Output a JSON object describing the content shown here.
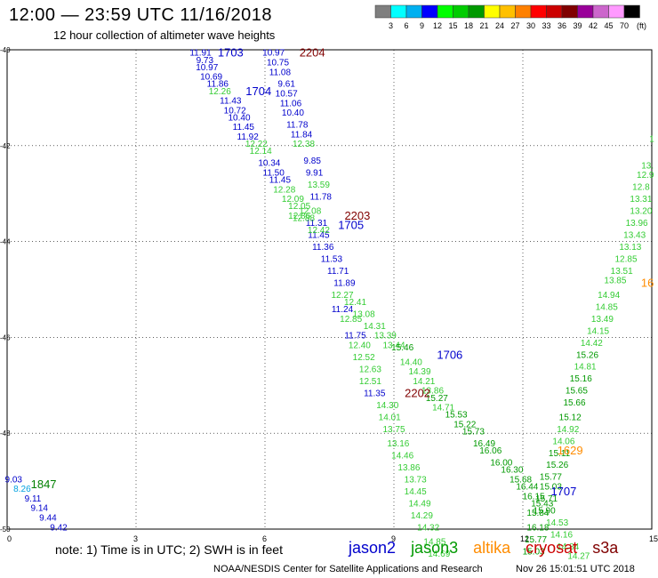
{
  "header": {
    "title": "12:00 — 23:59 UTC 11/16/2018",
    "subtitle": "12 hour collection of altimeter wave heights"
  },
  "colorbar": {
    "colors": [
      "#7f7f7f",
      "#00ffff",
      "#00b0f0",
      "#0000ff",
      "#00ff00",
      "#00cc00",
      "#009900",
      "#ffff00",
      "#ffc000",
      "#ff8000",
      "#ff0000",
      "#cc0000",
      "#800000",
      "#990099",
      "#cc66cc",
      "#ff99ff",
      "#000000"
    ],
    "labels": [
      "3",
      "6",
      "9",
      "12",
      "15",
      "18",
      "21",
      "24",
      "27",
      "30",
      "33",
      "36",
      "39",
      "42",
      "45",
      "70",
      "(ft)"
    ]
  },
  "chart_data": {
    "type": "scatter",
    "xlim": [
      0,
      15
    ],
    "ylim": [
      -50,
      -40
    ],
    "x_ticks": [
      "0",
      "3",
      "6",
      "9",
      "12",
      "15"
    ],
    "y_ticks": [
      "-40",
      "-42",
      "-44",
      "-46",
      "-48",
      "-50"
    ],
    "x_tick_values": [
      0,
      3,
      6,
      9,
      12,
      15
    ],
    "y_tick_values": [
      -40,
      -42,
      -44,
      -46,
      -48,
      -50
    ],
    "points": [
      {
        "x": 4.5,
        "y": -40.05,
        "v": "11.91",
        "c": "#0000cc"
      },
      {
        "x": 4.6,
        "y": -40.2,
        "v": "9.73",
        "c": "#0000cc"
      },
      {
        "x": 4.65,
        "y": -40.35,
        "v": "10.97",
        "c": "#0000cc"
      },
      {
        "x": 4.75,
        "y": -40.55,
        "v": "10.69",
        "c": "#0000cc"
      },
      {
        "x": 4.9,
        "y": -40.7,
        "v": "11.86",
        "c": "#0000cc"
      },
      {
        "x": 4.95,
        "y": -40.85,
        "v": "12.26",
        "c": "#33cc33"
      },
      {
        "x": 5.2,
        "y": -41.05,
        "v": "11.43",
        "c": "#0000cc"
      },
      {
        "x": 5.3,
        "y": -41.25,
        "v": "10.72",
        "c": "#0000cc"
      },
      {
        "x": 5.4,
        "y": -41.4,
        "v": "10.40",
        "c": "#0000cc"
      },
      {
        "x": 5.5,
        "y": -41.6,
        "v": "11.45",
        "c": "#0000cc"
      },
      {
        "x": 5.6,
        "y": -41.8,
        "v": "11.92",
        "c": "#0000cc"
      },
      {
        "x": 5.8,
        "y": -41.95,
        "v": "12.22",
        "c": "#33cc33"
      },
      {
        "x": 5.9,
        "y": -42.1,
        "v": "12.14",
        "c": "#33cc33"
      },
      {
        "x": 6.1,
        "y": -42.35,
        "v": "10.34",
        "c": "#0000cc"
      },
      {
        "x": 6.2,
        "y": -42.55,
        "v": "11.50",
        "c": "#0000cc"
      },
      {
        "x": 6.35,
        "y": -42.7,
        "v": "11.45",
        "c": "#0000cc"
      },
      {
        "x": 6.45,
        "y": -42.9,
        "v": "12.28",
        "c": "#33cc33"
      },
      {
        "x": 6.65,
        "y": -43.1,
        "v": "12.09",
        "c": "#33cc33"
      },
      {
        "x": 6.8,
        "y": -43.25,
        "v": "12.05",
        "c": "#33cc33"
      },
      {
        "x": 6.8,
        "y": -43.45,
        "v": "12.86",
        "c": "#33cc33"
      },
      {
        "x": 7.2,
        "y": -43.6,
        "v": "11.31",
        "c": "#0000cc"
      },
      {
        "x": 7.25,
        "y": -43.85,
        "v": "11.45",
        "c": "#0000cc"
      },
      {
        "x": 7.35,
        "y": -44.1,
        "v": "11.36",
        "c": "#0000cc"
      },
      {
        "x": 7.55,
        "y": -44.35,
        "v": "11.53",
        "c": "#0000cc"
      },
      {
        "x": 7.7,
        "y": -44.6,
        "v": "11.71",
        "c": "#0000cc"
      },
      {
        "x": 7.85,
        "y": -44.85,
        "v": "11.89",
        "c": "#0000cc"
      },
      {
        "x": 7.8,
        "y": -45.1,
        "v": "12.27",
        "c": "#33cc33"
      },
      {
        "x": 7.8,
        "y": -45.4,
        "v": "11.24",
        "c": "#0000cc"
      },
      {
        "x": 8.0,
        "y": -45.6,
        "v": "12.85",
        "c": "#33cc33"
      },
      {
        "x": 8.1,
        "y": -45.95,
        "v": "11.75",
        "c": "#0000cc"
      },
      {
        "x": 8.2,
        "y": -46.15,
        "v": "12.40",
        "c": "#33cc33"
      },
      {
        "x": 8.3,
        "y": -46.4,
        "v": "12.52",
        "c": "#33cc33"
      },
      {
        "x": 8.45,
        "y": -46.65,
        "v": "12.63",
        "c": "#33cc33"
      },
      {
        "x": 8.45,
        "y": -46.9,
        "v": "12.51",
        "c": "#33cc33"
      },
      {
        "x": 8.55,
        "y": -47.15,
        "v": "11.35",
        "c": "#0000cc"
      },
      {
        "x": 8.85,
        "y": -47.4,
        "v": "14.30",
        "c": "#33cc33"
      },
      {
        "x": 8.9,
        "y": -47.65,
        "v": "14.01",
        "c": "#33cc33"
      },
      {
        "x": 9.0,
        "y": -47.9,
        "v": "13.75",
        "c": "#33cc33"
      },
      {
        "x": 9.1,
        "y": -48.2,
        "v": "13.16",
        "c": "#33cc33"
      },
      {
        "x": 9.2,
        "y": -48.45,
        "v": "14.46",
        "c": "#33cc33"
      },
      {
        "x": 9.35,
        "y": -48.7,
        "v": "13.86",
        "c": "#33cc33"
      },
      {
        "x": 9.5,
        "y": -48.95,
        "v": "13.73",
        "c": "#33cc33"
      },
      {
        "x": 9.5,
        "y": -49.2,
        "v": "14.45",
        "c": "#33cc33"
      },
      {
        "x": 9.6,
        "y": -49.45,
        "v": "14.49",
        "c": "#33cc33"
      },
      {
        "x": 9.65,
        "y": -49.7,
        "v": "14.29",
        "c": "#33cc33"
      },
      {
        "x": 9.8,
        "y": -49.95,
        "v": "14.32",
        "c": "#33cc33"
      },
      {
        "x": 9.95,
        "y": -50.25,
        "v": "14.85",
        "c": "#33cc33"
      },
      {
        "x": 10.05,
        "y": -50.5,
        "v": "14.69",
        "c": "#33cc33"
      },
      {
        "x": 6.2,
        "y": -40.05,
        "v": "10.97",
        "c": "#0000cc"
      },
      {
        "x": 6.3,
        "y": -40.25,
        "v": "10.75",
        "c": "#0000cc"
      },
      {
        "x": 6.35,
        "y": -40.45,
        "v": "11.08",
        "c": "#0000cc"
      },
      {
        "x": 6.5,
        "y": -40.7,
        "v": "9.61",
        "c": "#0000cc"
      },
      {
        "x": 6.5,
        "y": -40.9,
        "v": "10.57",
        "c": "#0000cc"
      },
      {
        "x": 6.6,
        "y": -41.1,
        "v": "11.06",
        "c": "#0000cc"
      },
      {
        "x": 6.65,
        "y": -41.3,
        "v": "10.40",
        "c": "#0000cc"
      },
      {
        "x": 6.75,
        "y": -41.55,
        "v": "11.78",
        "c": "#0000cc"
      },
      {
        "x": 6.85,
        "y": -41.75,
        "v": "11.84",
        "c": "#0000cc"
      },
      {
        "x": 6.9,
        "y": -41.95,
        "v": "12.38",
        "c": "#33cc33"
      },
      {
        "x": 7.1,
        "y": -42.3,
        "v": "9.85",
        "c": "#0000cc"
      },
      {
        "x": 7.15,
        "y": -42.55,
        "v": "9.91",
        "c": "#0000cc"
      },
      {
        "x": 7.25,
        "y": -42.8,
        "v": "13.59",
        "c": "#33cc33"
      },
      {
        "x": 7.3,
        "y": -43.05,
        "v": "11.78",
        "c": "#0000cc"
      },
      {
        "x": 7.05,
        "y": -43.35,
        "v": "12.08",
        "c": "#33cc33"
      },
      {
        "x": 6.9,
        "y": -43.5,
        "v": "12.88",
        "c": "#33cc33"
      },
      {
        "x": 7.25,
        "y": -43.75,
        "v": "12.42",
        "c": "#33cc33"
      },
      {
        "x": 8.1,
        "y": -45.25,
        "v": "12.41",
        "c": "#33cc33"
      },
      {
        "x": 8.3,
        "y": -45.5,
        "v": "13.08",
        "c": "#33cc33"
      },
      {
        "x": 8.55,
        "y": -45.75,
        "v": "14.31",
        "c": "#33cc33"
      },
      {
        "x": 8.8,
        "y": -45.95,
        "v": "13.39",
        "c": "#33cc33"
      },
      {
        "x": 9.0,
        "y": -46.15,
        "v": "13.44",
        "c": "#33cc33"
      },
      {
        "x": 9.2,
        "y": -46.2,
        "v": "15.46",
        "c": "#009900"
      },
      {
        "x": 9.4,
        "y": -46.5,
        "v": "14.40",
        "c": "#33cc33"
      },
      {
        "x": 9.6,
        "y": -46.7,
        "v": "14.39",
        "c": "#33cc33"
      },
      {
        "x": 9.7,
        "y": -46.9,
        "v": "14.21",
        "c": "#33cc33"
      },
      {
        "x": 9.9,
        "y": -47.1,
        "v": "13.86",
        "c": "#33cc33"
      },
      {
        "x": 10.0,
        "y": -47.25,
        "v": "15.27",
        "c": "#009900"
      },
      {
        "x": 10.15,
        "y": -47.45,
        "v": "14.71",
        "c": "#33cc33"
      },
      {
        "x": 10.45,
        "y": -47.6,
        "v": "15.53",
        "c": "#009900"
      },
      {
        "x": 10.65,
        "y": -47.8,
        "v": "15.22",
        "c": "#009900"
      },
      {
        "x": 10.85,
        "y": -47.95,
        "v": "15.73",
        "c": "#009900"
      },
      {
        "x": 11.1,
        "y": -48.2,
        "v": "16.49",
        "c": "#009900"
      },
      {
        "x": 11.25,
        "y": -48.35,
        "v": "16.06",
        "c": "#009900"
      },
      {
        "x": 11.5,
        "y": -48.6,
        "v": "16.00",
        "c": "#009900"
      },
      {
        "x": 11.75,
        "y": -48.75,
        "v": "16.30",
        "c": "#009900"
      },
      {
        "x": 11.95,
        "y": -48.95,
        "v": "15.68",
        "c": "#009900"
      },
      {
        "x": 12.1,
        "y": -49.1,
        "v": "16.44",
        "c": "#009900"
      },
      {
        "x": 12.25,
        "y": -49.3,
        "v": "16.15",
        "c": "#009900"
      },
      {
        "x": 12.45,
        "y": -49.45,
        "v": "15.43",
        "c": "#009900"
      },
      {
        "x": 12.35,
        "y": -49.65,
        "v": "15.84",
        "c": "#009900"
      },
      {
        "x": 12.35,
        "y": -49.95,
        "v": "16.18",
        "c": "#009900"
      },
      {
        "x": 12.3,
        "y": -50.2,
        "v": "15.77",
        "c": "#009900"
      },
      {
        "x": 12.25,
        "y": -50.45,
        "v": "15.03",
        "c": "#009900"
      },
      {
        "x": 15.0,
        "y": -41.85,
        "v": "1",
        "c": "#33cc33"
      },
      {
        "x": 14.9,
        "y": -42.4,
        "v": "13.",
        "c": "#33cc33"
      },
      {
        "x": 14.85,
        "y": -42.6,
        "v": "12.9",
        "c": "#33cc33"
      },
      {
        "x": 14.75,
        "y": -42.85,
        "v": "12.8",
        "c": "#33cc33"
      },
      {
        "x": 14.75,
        "y": -43.1,
        "v": "13.31",
        "c": "#33cc33"
      },
      {
        "x": 14.75,
        "y": -43.35,
        "v": "13.20",
        "c": "#33cc33"
      },
      {
        "x": 14.65,
        "y": -43.6,
        "v": "13.96",
        "c": "#33cc33"
      },
      {
        "x": 14.6,
        "y": -43.85,
        "v": "13.43",
        "c": "#33cc33"
      },
      {
        "x": 14.5,
        "y": -44.1,
        "v": "13.13",
        "c": "#33cc33"
      },
      {
        "x": 14.4,
        "y": -44.35,
        "v": "12.85",
        "c": "#33cc33"
      },
      {
        "x": 14.3,
        "y": -44.6,
        "v": "13.51",
        "c": "#33cc33"
      },
      {
        "x": 14.15,
        "y": -44.8,
        "v": "13.85",
        "c": "#33cc33"
      },
      {
        "x": 14.0,
        "y": -45.1,
        "v": "14.94",
        "c": "#33cc33"
      },
      {
        "x": 13.95,
        "y": -45.35,
        "v": "14.85",
        "c": "#33cc33"
      },
      {
        "x": 13.85,
        "y": -45.6,
        "v": "13.49",
        "c": "#33cc33"
      },
      {
        "x": 13.75,
        "y": -45.85,
        "v": "14.15",
        "c": "#33cc33"
      },
      {
        "x": 13.6,
        "y": -46.1,
        "v": "14.42",
        "c": "#33cc33"
      },
      {
        "x": 13.5,
        "y": -46.35,
        "v": "15.26",
        "c": "#009900"
      },
      {
        "x": 13.45,
        "y": -46.6,
        "v": "14.81",
        "c": "#33cc33"
      },
      {
        "x": 13.35,
        "y": -46.85,
        "v": "15.16",
        "c": "#009900"
      },
      {
        "x": 13.25,
        "y": -47.1,
        "v": "15.65",
        "c": "#009900"
      },
      {
        "x": 13.2,
        "y": -47.35,
        "v": "15.66",
        "c": "#009900"
      },
      {
        "x": 13.1,
        "y": -47.65,
        "v": "15.12",
        "c": "#009900"
      },
      {
        "x": 13.05,
        "y": -47.9,
        "v": "14.92",
        "c": "#33cc33"
      },
      {
        "x": 12.95,
        "y": -48.15,
        "v": "14.06",
        "c": "#33cc33"
      },
      {
        "x": 12.85,
        "y": -48.4,
        "v": "15.11",
        "c": "#009900"
      },
      {
        "x": 12.8,
        "y": -48.65,
        "v": "15.26",
        "c": "#009900"
      },
      {
        "x": 12.65,
        "y": -48.9,
        "v": "15.77",
        "c": "#009900"
      },
      {
        "x": 12.65,
        "y": -49.1,
        "v": "15.03",
        "c": "#009900"
      },
      {
        "x": 12.55,
        "y": -49.35,
        "v": "15.71",
        "c": "#009900"
      },
      {
        "x": 12.5,
        "y": -49.6,
        "v": "15.90",
        "c": "#009900"
      },
      {
        "x": 12.8,
        "y": -49.85,
        "v": "14.53",
        "c": "#33cc33"
      },
      {
        "x": 12.9,
        "y": -50.1,
        "v": "14.16",
        "c": "#33cc33"
      },
      {
        "x": 13.05,
        "y": -50.35,
        "v": "14.84",
        "c": "#33cc33"
      },
      {
        "x": 13.3,
        "y": -50.55,
        "v": "14.27",
        "c": "#33cc33"
      },
      {
        "x": 0.15,
        "y": -48.95,
        "v": "9.03",
        "c": "#0000cc"
      },
      {
        "x": 0.35,
        "y": -49.15,
        "v": "8.26",
        "c": "#00a0e0"
      },
      {
        "x": 0.6,
        "y": -49.35,
        "v": "9.11",
        "c": "#0000cc"
      },
      {
        "x": 0.75,
        "y": -49.55,
        "v": "9.14",
        "c": "#0000cc"
      },
      {
        "x": 0.95,
        "y": -49.75,
        "v": "9.44",
        "c": "#0000cc"
      },
      {
        "x": 1.2,
        "y": -49.95,
        "v": "9.42",
        "c": "#0000cc"
      }
    ],
    "track_labels": [
      {
        "x": 5.2,
        "y": -40.05,
        "text": "1703",
        "c": "#0000cc"
      },
      {
        "x": 7.1,
        "y": -40.05,
        "text": "2204",
        "c": "#800000"
      },
      {
        "x": 5.85,
        "y": -40.85,
        "text": "1704",
        "c": "#0000cc"
      },
      {
        "x": 8.15,
        "y": -43.45,
        "text": "2203",
        "c": "#800000"
      },
      {
        "x": 8.0,
        "y": -43.65,
        "text": "1705",
        "c": "#0000cc"
      },
      {
        "x": 10.3,
        "y": -46.35,
        "text": "1706",
        "c": "#0000cc"
      },
      {
        "x": 9.55,
        "y": -47.15,
        "text": "2202",
        "c": "#800000"
      },
      {
        "x": 13.1,
        "y": -48.35,
        "text": "1629",
        "c": "#ff8c00"
      },
      {
        "x": 14.9,
        "y": -44.85,
        "text": "16",
        "c": "#ff8c00"
      },
      {
        "x": 12.95,
        "y": -49.2,
        "text": "1707",
        "c": "#0000cc"
      },
      {
        "x": 0.85,
        "y": -49.05,
        "text": "1847",
        "c": "#008000"
      }
    ]
  },
  "footer": {
    "note": "note: 1) Time is in UTC; 2) SWH is in feet",
    "missions": [
      {
        "name": "jason2",
        "color": "#0000cc"
      },
      {
        "name": "jason3",
        "color": "#009900"
      },
      {
        "name": "altika",
        "color": "#ff8c00"
      },
      {
        "name": "cryosat",
        "color": "#cc0000"
      },
      {
        "name": "s3a",
        "color": "#800000"
      }
    ],
    "credit": "NOAA/NESDIS Center for Satellite Applications and Research",
    "timestamp": "Nov 26 15:01:51 UTC 2018"
  }
}
